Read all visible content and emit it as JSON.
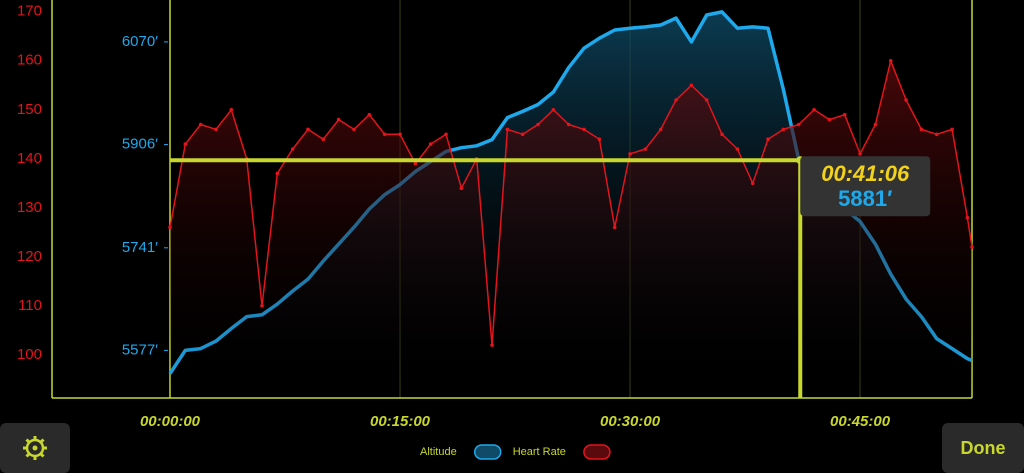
{
  "chart_data": {
    "type": "line",
    "x": [
      0,
      60,
      120,
      180,
      240,
      300,
      360,
      420,
      480,
      540,
      600,
      660,
      720,
      780,
      840,
      900,
      960,
      1020,
      1080,
      1140,
      1200,
      1260,
      1320,
      1380,
      1440,
      1500,
      1560,
      1620,
      1680,
      1740,
      1800,
      1860,
      1920,
      1980,
      2040,
      2100,
      2160,
      2220,
      2280,
      2340,
      2400,
      2460,
      2520,
      2580,
      2640,
      2700,
      2760,
      2820,
      2880,
      2940,
      3000,
      3060,
      3120,
      3138
    ],
    "xlim": [
      0,
      3138
    ],
    "xticks": [
      {
        "value": 0,
        "label": "00:00:00"
      },
      {
        "value": 900,
        "label": "00:15:00"
      },
      {
        "value": 1800,
        "label": "00:30:00"
      },
      {
        "value": 2700,
        "label": "00:45:00"
      }
    ],
    "ylim": [
      91.2,
      172.4
    ],
    "yticks": [
      100,
      110,
      120,
      130,
      140,
      150,
      160,
      170
    ],
    "y2lim": [
      5501,
      6137
    ],
    "y2ticks": [
      {
        "value": 5577,
        "label": "5577′"
      },
      {
        "value": 5741,
        "label": "5741′"
      },
      {
        "value": 5906,
        "label": "5906′"
      },
      {
        "value": 6070,
        "label": "6070′"
      }
    ],
    "series": [
      {
        "name": "Heart Rate",
        "color": "#e3141c",
        "axis": "y",
        "values": [
          126,
          143,
          147,
          146,
          150,
          140,
          110,
          137,
          142,
          146,
          144,
          148,
          146,
          149,
          145,
          145,
          139,
          143,
          145,
          134,
          140,
          102,
          146,
          145,
          147,
          150,
          147,
          146,
          144,
          126,
          141,
          142,
          146,
          152,
          155,
          152,
          145,
          142,
          135,
          144,
          146,
          147,
          150,
          148,
          149,
          141,
          147,
          160,
          152,
          146,
          145,
          146,
          128,
          122
        ]
      },
      {
        "name": "Altitude",
        "color": "#1ea9ec",
        "axis": "y2",
        "values": [
          5540,
          5577,
          5580,
          5592,
          5612,
          5631,
          5634,
          5651,
          5672,
          5691,
          5720,
          5747,
          5774,
          5803,
          5826,
          5842,
          5863,
          5879,
          5895,
          5901,
          5904,
          5914,
          5949,
          5959,
          5970,
          5990,
          6029,
          6060,
          6076,
          6089,
          6092,
          6094,
          6097,
          6108,
          6070,
          6113,
          6118,
          6092,
          6094,
          6092,
          5994,
          5882,
          5858,
          5826,
          5803,
          5783,
          5747,
          5699,
          5659,
          5631,
          5596,
          5580,
          5564,
          5561
        ]
      }
    ],
    "cursor": {
      "x": 2466,
      "time_label": "00:41:06",
      "altitude": 5881,
      "altitude_label": "5881′"
    },
    "grid": true
  },
  "ui": {
    "done": "Done"
  }
}
